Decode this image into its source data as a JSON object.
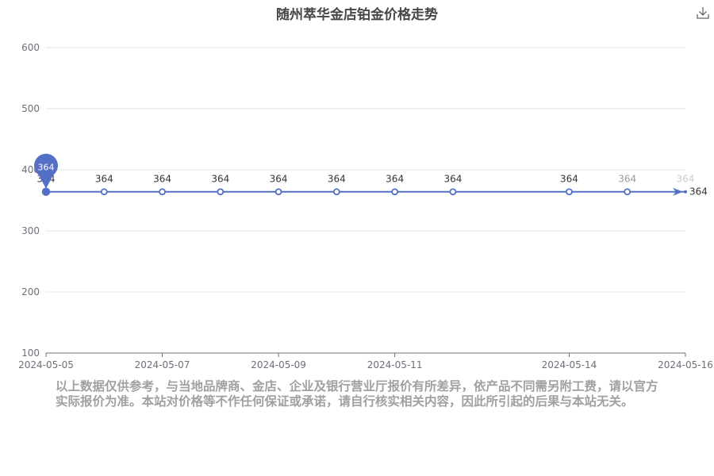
{
  "title": "随州萃华金店铂金价格走势",
  "toolbar": {
    "download_icon": "download-icon"
  },
  "chart_data": {
    "type": "line",
    "title": "随州萃华金店铂金价格走势",
    "x": [
      "2024-05-05",
      "2024-05-06",
      "2024-05-07",
      "2024-05-08",
      "2024-05-09",
      "2024-05-10",
      "2024-05-11",
      "2024-05-12",
      "2024-05-14",
      "2024-05-15",
      "2024-05-16"
    ],
    "x_tick_labels": [
      "2024-05-05",
      "2024-05-07",
      "2024-05-09",
      "2024-05-11",
      "2024-05-14",
      "2024-05-16"
    ],
    "series": [
      {
        "values": [
          364,
          364,
          364,
          364,
          364,
          364,
          364,
          364,
          364,
          364,
          364
        ],
        "color": "#5470c6"
      }
    ],
    "y_ticks": [
      100,
      200,
      300,
      400,
      500,
      600
    ],
    "ylim": [
      100,
      600
    ],
    "max_marker": {
      "label": "364",
      "index": 0
    },
    "end_label": "364",
    "grid": true,
    "xlabel": "",
    "ylabel": ""
  },
  "disclaimer": "以上数据仅供参考，与当地品牌商、金店、企业及银行营业厅报价有所差异，依产品不同需另附工费，请以官方实际报价为准。本站对价格等不作任何保证或承诺，请自行核实相关内容，因此所引起的后果与本站无关。"
}
